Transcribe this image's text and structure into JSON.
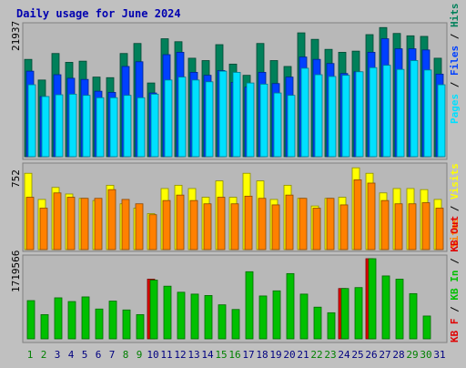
{
  "colors": {
    "background": "#c0c0c0",
    "panel": "#b8b8b8",
    "title": "#0000b0",
    "hits": "#00805a",
    "files": "#0040ff",
    "pages": "#00e0ff",
    "visits": "#ffff00",
    "sites": "#ff8000",
    "kb_in": "#00c000",
    "kb_out": "#e00000",
    "weekend_label": "#008000",
    "weekday_label": "#000080"
  },
  "chart_data": [
    {
      "type": "bar",
      "title": "Daily usage for June 2024",
      "max_label": "21937",
      "ylim": [
        0,
        21937
      ],
      "legend": [
        "Pages",
        "Files",
        "Hits"
      ],
      "categories": [
        "1",
        "2",
        "3",
        "4",
        "5",
        "6",
        "7",
        "8",
        "9",
        "10",
        "11",
        "12",
        "13",
        "14",
        "15",
        "16",
        "17",
        "18",
        "19",
        "20",
        "21",
        "22",
        "23",
        "24",
        "25",
        "26",
        "27",
        "28",
        "29",
        "30",
        "31"
      ],
      "series": [
        {
          "name": "Hits",
          "values": [
            16500,
            13000,
            17500,
            16000,
            16200,
            13500,
            13400,
            17500,
            19200,
            12500,
            20000,
            19500,
            16700,
            16300,
            19000,
            15700,
            13800,
            19200,
            16300,
            15300,
            21000,
            19900,
            18200,
            17700,
            17900,
            20700,
            21900,
            20900,
            20500,
            20400,
            16700
          ]
        },
        {
          "name": "Files",
          "values": [
            14500,
            10200,
            13900,
            13300,
            13100,
            11100,
            10900,
            15300,
            16100,
            10800,
            17300,
            17700,
            14300,
            13800,
            14600,
            12600,
            11800,
            14300,
            12400,
            13500,
            16900,
            16500,
            15800,
            14100,
            14400,
            17700,
            20000,
            18300,
            18300,
            18100,
            14000
          ]
        },
        {
          "name": "Pages",
          "values": [
            12200,
            10200,
            10500,
            10600,
            10400,
            10000,
            10000,
            10400,
            10000,
            10600,
            13000,
            13500,
            13000,
            12700,
            14500,
            14300,
            12500,
            12300,
            10800,
            10400,
            15000,
            13900,
            13600,
            13800,
            14400,
            15100,
            15500,
            14800,
            16300,
            14700,
            12200
          ]
        }
      ]
    },
    {
      "type": "bar",
      "max_label": "752",
      "ylim": [
        0,
        752
      ],
      "legend": [
        "Sites",
        "Visits"
      ],
      "categories": [
        "1",
        "2",
        "3",
        "4",
        "5",
        "6",
        "7",
        "8",
        "9",
        "10",
        "11",
        "12",
        "13",
        "14",
        "15",
        "16",
        "17",
        "18",
        "19",
        "20",
        "21",
        "22",
        "23",
        "24",
        "25",
        "26",
        "27",
        "28",
        "29",
        "30",
        "31"
      ],
      "series": [
        {
          "name": "Visits",
          "values": [
            700,
            460,
            570,
            510,
            470,
            450,
            590,
            420,
            380,
            330,
            560,
            590,
            560,
            480,
            630,
            480,
            700,
            630,
            460,
            590,
            470,
            400,
            470,
            480,
            750,
            700,
            520,
            560,
            560,
            550,
            460
          ]
        },
        {
          "name": "Sites",
          "values": [
            480,
            380,
            520,
            480,
            470,
            470,
            550,
            460,
            420,
            320,
            450,
            500,
            450,
            420,
            480,
            420,
            490,
            470,
            410,
            500,
            470,
            380,
            470,
            410,
            640,
            610,
            450,
            420,
            420,
            430,
            380
          ]
        }
      ]
    },
    {
      "type": "bar",
      "max_label": "1719566",
      "ylim": [
        0,
        1719566
      ],
      "legend": [
        "KB F",
        "KB In",
        "KB Out"
      ],
      "categories": [
        "1",
        "2",
        "3",
        "4",
        "5",
        "6",
        "7",
        "8",
        "9",
        "10",
        "11",
        "12",
        "13",
        "14",
        "15",
        "16",
        "17",
        "18",
        "19",
        "20",
        "21",
        "22",
        "23",
        "24",
        "25",
        "26",
        "27",
        "28",
        "29",
        "30",
        "31"
      ],
      "series": [
        {
          "name": "KB In",
          "values": [
            820000,
            520000,
            880000,
            800000,
            900000,
            640000,
            810000,
            620000,
            520000,
            1260000,
            1130000,
            1000000,
            960000,
            930000,
            730000,
            630000,
            1440000,
            920000,
            1030000,
            1400000,
            960000,
            680000,
            560000,
            1080000,
            1100000,
            1719566,
            1350000,
            1280000,
            970000,
            490000,
            0
          ]
        },
        {
          "name": "KB Out",
          "values": [
            0,
            0,
            0,
            0,
            0,
            0,
            0,
            0,
            0,
            1280000,
            0,
            0,
            0,
            0,
            0,
            0,
            0,
            0,
            0,
            0,
            0,
            0,
            0,
            1080000,
            0,
            1719566,
            0,
            0,
            0,
            0,
            0
          ]
        }
      ]
    }
  ],
  "x_labels": [
    {
      "text": "1",
      "weekend": true
    },
    {
      "text": "2",
      "weekend": true
    },
    {
      "text": "3",
      "weekend": false
    },
    {
      "text": "4",
      "weekend": false
    },
    {
      "text": "5",
      "weekend": false
    },
    {
      "text": "6",
      "weekend": false
    },
    {
      "text": "7",
      "weekend": false
    },
    {
      "text": "8",
      "weekend": true
    },
    {
      "text": "9",
      "weekend": true
    },
    {
      "text": "10",
      "weekend": false
    },
    {
      "text": "11",
      "weekend": false
    },
    {
      "text": "12",
      "weekend": false
    },
    {
      "text": "13",
      "weekend": false
    },
    {
      "text": "14",
      "weekend": false
    },
    {
      "text": "15",
      "weekend": true
    },
    {
      "text": "16",
      "weekend": true
    },
    {
      "text": "17",
      "weekend": false
    },
    {
      "text": "18",
      "weekend": false
    },
    {
      "text": "19",
      "weekend": false
    },
    {
      "text": "20",
      "weekend": false
    },
    {
      "text": "21",
      "weekend": false
    },
    {
      "text": "22",
      "weekend": true
    },
    {
      "text": "23",
      "weekend": true
    },
    {
      "text": "24",
      "weekend": false
    },
    {
      "text": "25",
      "weekend": false
    },
    {
      "text": "26",
      "weekend": false
    },
    {
      "text": "27",
      "weekend": false
    },
    {
      "text": "28",
      "weekend": false
    },
    {
      "text": "29",
      "weekend": true
    },
    {
      "text": "30",
      "weekend": true
    },
    {
      "text": "31",
      "weekend": false
    }
  ]
}
